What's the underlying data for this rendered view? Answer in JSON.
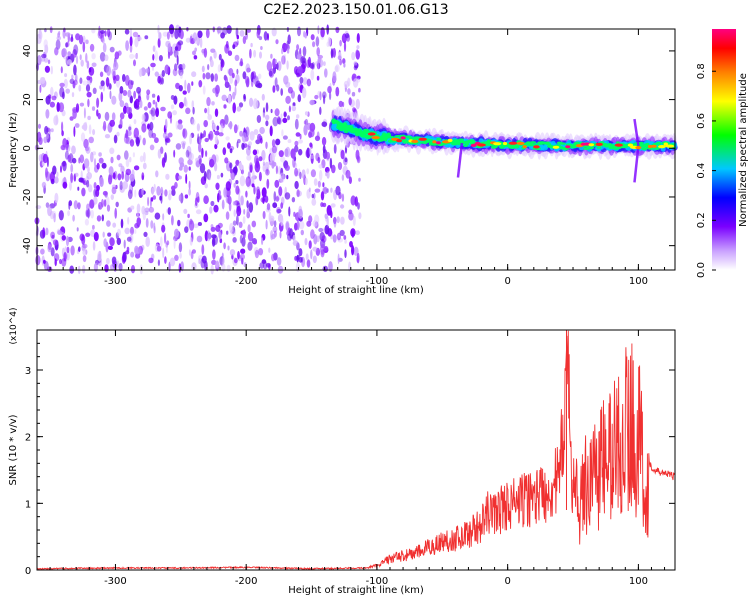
{
  "title": "C2E2.2023.150.01.06.G13",
  "chart_data": [
    {
      "type": "heatmap",
      "xlabel": "Height of straight line (km)",
      "ylabel": "Frequency (Hz)",
      "xlim": [
        -360,
        128
      ],
      "ylim": [
        -50,
        49
      ],
      "xticks": [
        -300,
        -200,
        -100,
        0,
        100
      ],
      "yticks": [
        -40,
        -20,
        0,
        20,
        40
      ],
      "colorbar": {
        "label": "Normalized spectral amplitude",
        "range": [
          0,
          0.97
        ],
        "ticks": [
          "0.0",
          "0.2",
          "0.4",
          "0.6",
          "0.8"
        ],
        "colormap": [
          "#ffffff",
          "#7a00ff",
          "#0000ff",
          "#00c8ff",
          "#00ff00",
          "#ffff00",
          "#ff8000",
          "#ff0000",
          "#ff0080"
        ]
      },
      "noise_region": {
        "x": [
          -360,
          -113
        ],
        "freq": [
          -50,
          49
        ],
        "typical_amplitude": 0.1
      },
      "ridge": [
        {
          "x": -133,
          "freq": 10.0
        },
        {
          "x": -110,
          "freq": 6.0
        },
        {
          "x": -90,
          "freq": 4.0
        },
        {
          "x": -60,
          "freq": 3.0
        },
        {
          "x": -30,
          "freq": 2.0
        },
        {
          "x": 0,
          "freq": 1.5
        },
        {
          "x": 40,
          "freq": 1.0
        },
        {
          "x": 80,
          "freq": 1.0
        },
        {
          "x": 100,
          "freq": 1.0
        },
        {
          "x": 128,
          "freq": 1.0
        }
      ]
    },
    {
      "type": "line",
      "xlabel": "Height of straight line (km)",
      "ylabel": "SNR (10 * v/v)",
      "yunit": "(x10^4)",
      "xlim": [
        -360,
        128
      ],
      "ylim": [
        0,
        3.6
      ],
      "xticks": [
        -300,
        -200,
        -100,
        0,
        100
      ],
      "yticks": [
        0,
        1,
        2,
        3
      ],
      "color": "#f03030",
      "series": [
        {
          "x": [
            -360,
            -300,
            -250,
            -200,
            -150,
            -110,
            -100,
            -90,
            -80,
            -70,
            -60,
            -50,
            -40,
            -30,
            -20,
            -15,
            -10,
            0,
            10,
            20,
            30,
            40,
            45,
            50,
            55,
            60,
            70,
            80,
            90,
            95,
            100,
            105,
            110,
            120,
            128
          ],
          "y": [
            0.02,
            0.03,
            0.03,
            0.04,
            0.02,
            0.03,
            0.08,
            0.2,
            0.25,
            0.3,
            0.4,
            0.5,
            0.55,
            0.65,
            0.8,
            1.0,
            1.0,
            1.15,
            1.2,
            1.3,
            1.4,
            1.6,
            3.6,
            1.5,
            1.3,
            2.0,
            2.3,
            2.6,
            3.1,
            3.2,
            3.0,
            2.0,
            1.5,
            1.45,
            1.4
          ]
        }
      ]
    }
  ]
}
